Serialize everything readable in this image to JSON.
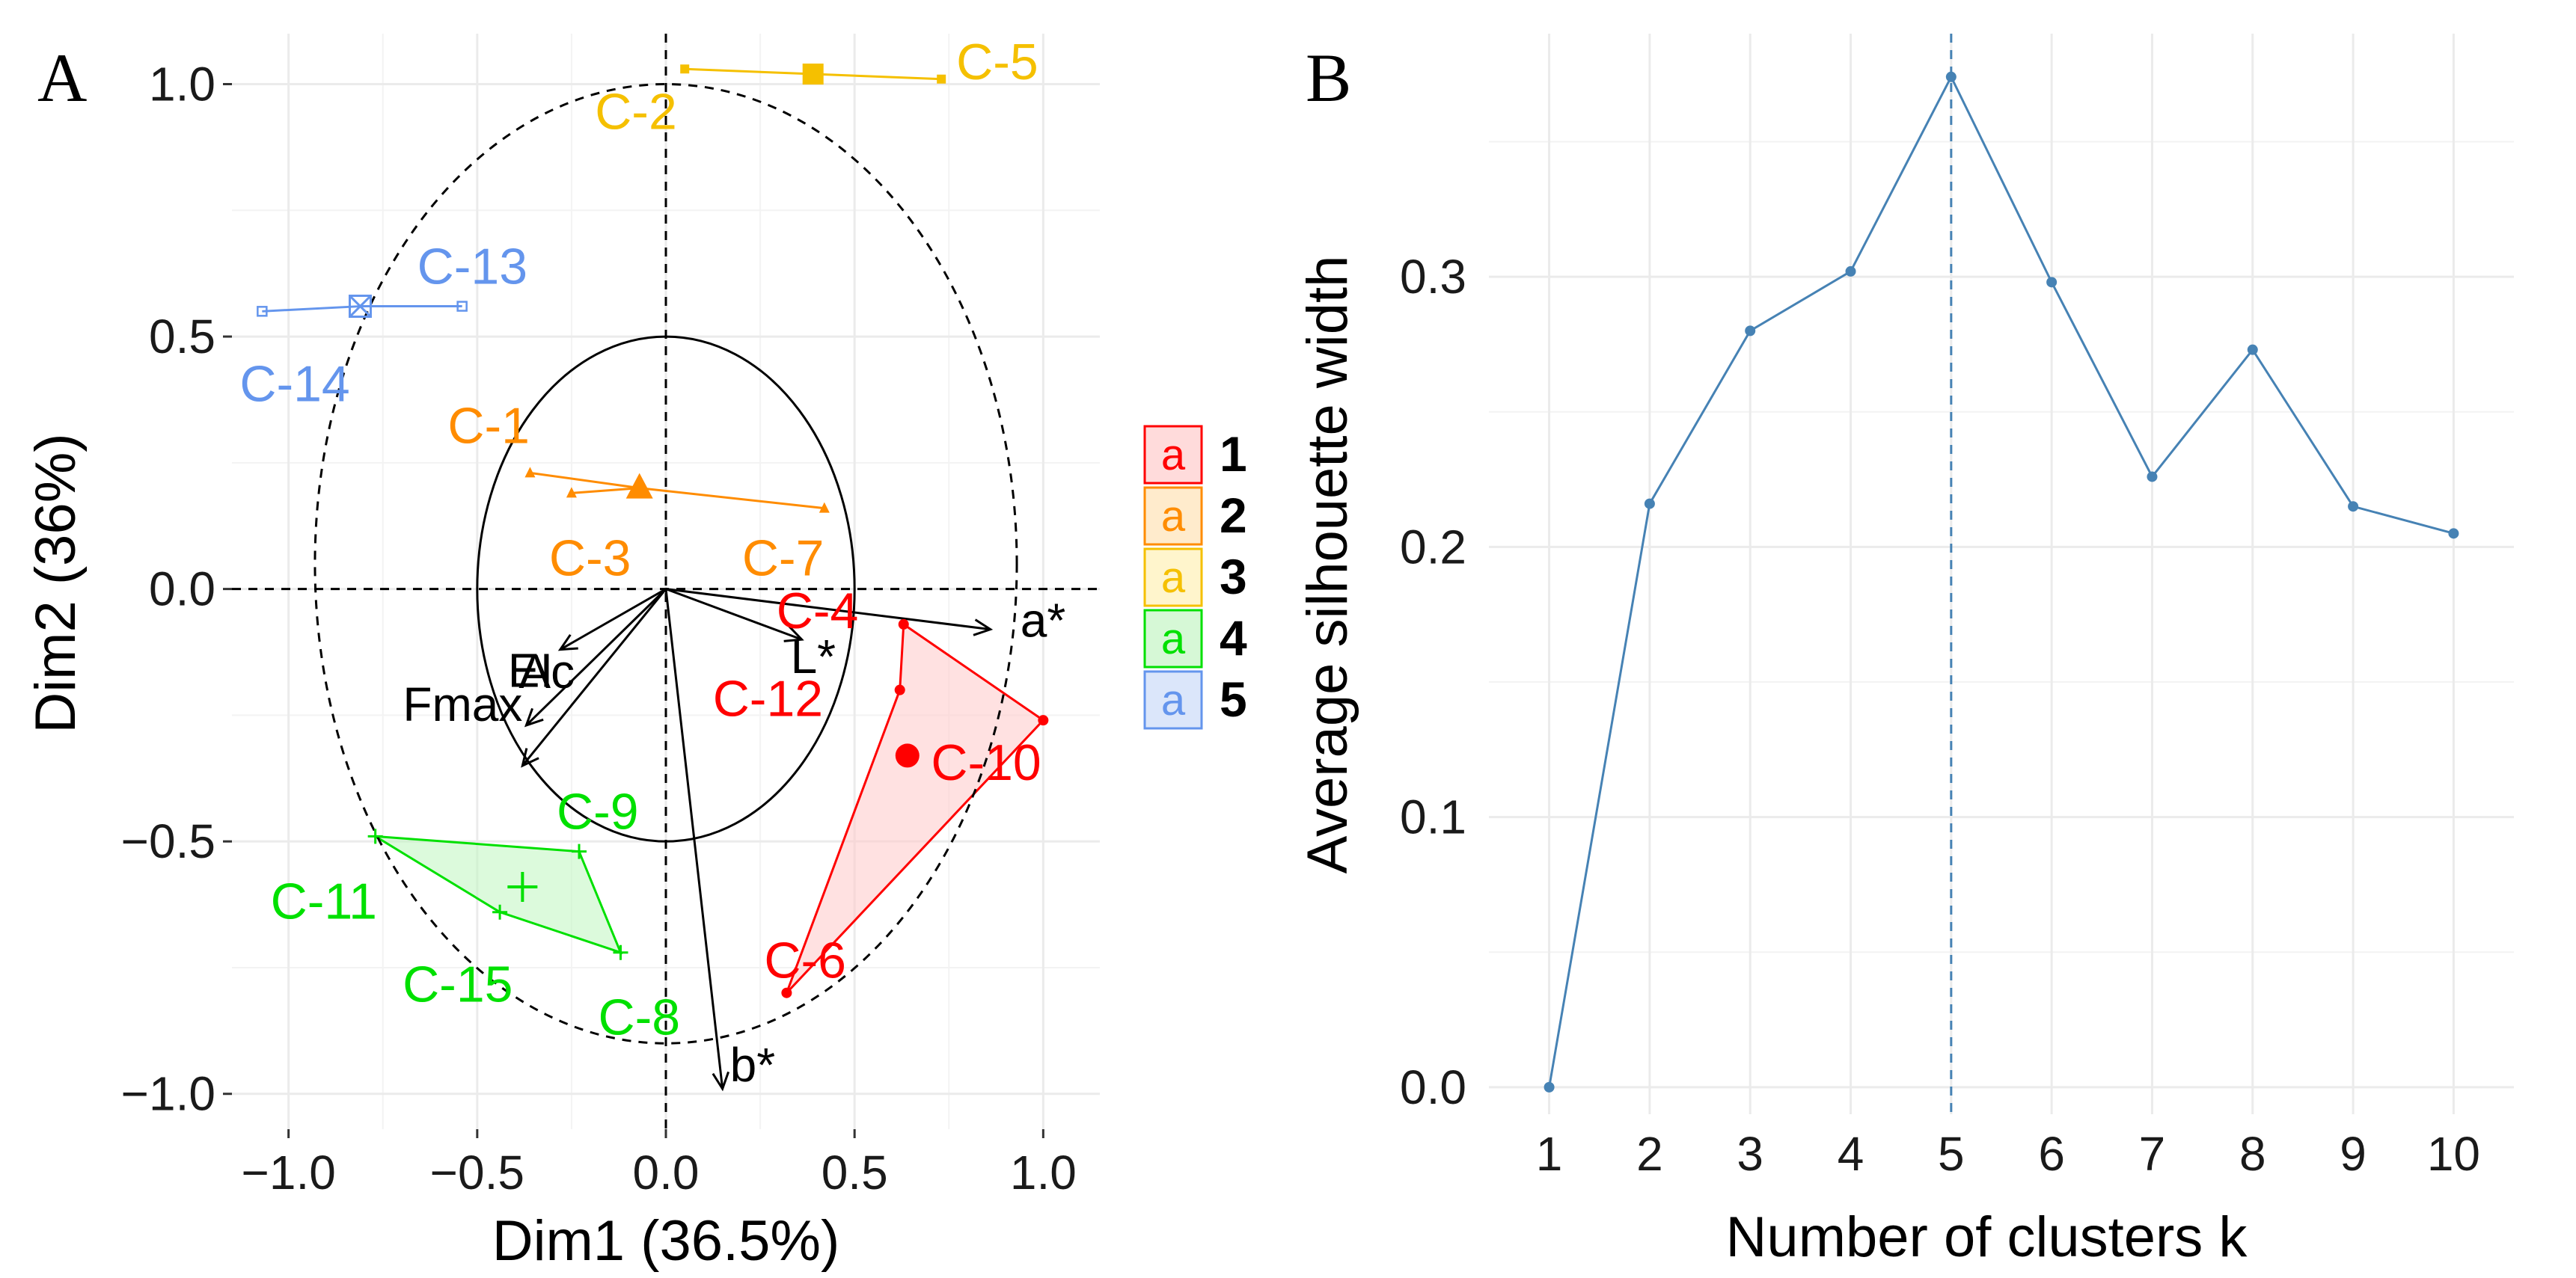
{
  "chart_data": [
    {
      "panel": "A",
      "type": "scatter",
      "xlabel": "Dim1 (36.5%)",
      "ylabel": "Dim2 (36%)",
      "xlim": [
        -1.15,
        1.15
      ],
      "ylim": [
        -1.07,
        1.1
      ],
      "xticks": [
        "−1.0",
        "−0.5",
        "0.0",
        "0.5",
        "1.0"
      ],
      "xtick_values": [
        -1.0,
        -0.5,
        0.0,
        0.5,
        1.0
      ],
      "yticks": [
        "−1.0",
        "−0.5",
        "0.0",
        "0.5",
        "1.0"
      ],
      "ytick_values": [
        -1.0,
        -0.5,
        0.0,
        0.5,
        1.0
      ],
      "grid": true,
      "legend_position": "right",
      "clusters": [
        {
          "name": "1",
          "color": "#FF0000",
          "fill": "#FFC8C8",
          "hull": true,
          "centroid": [
            0.64,
            -0.33
          ],
          "points": [
            {
              "label": "C-4",
              "x": 0.63,
              "y": -0.07
            },
            {
              "label": "C-10",
              "x": 1.0,
              "y": -0.26
            },
            {
              "label": "C-12",
              "x": 0.62,
              "y": -0.2
            },
            {
              "label": "C-6",
              "x": 0.32,
              "y": -0.8
            }
          ]
        },
        {
          "name": "2",
          "color": "#FF8C00",
          "fill": "#FFE0B0",
          "hull": false,
          "centroid": [
            -0.07,
            0.2
          ],
          "points": [
            {
              "label": "C-1",
              "x": -0.36,
              "y": 0.23
            },
            {
              "label": "C-3",
              "x": -0.25,
              "y": 0.19
            },
            {
              "label": "C-7",
              "x": 0.42,
              "y": 0.16
            }
          ]
        },
        {
          "name": "3",
          "color": "#F5C000",
          "fill": "#FFF0B0",
          "hull": false,
          "centroid": [
            0.39,
            1.02
          ],
          "points": [
            {
              "label": "C-2",
              "x": 0.05,
              "y": 1.03
            },
            {
              "label": "C-5",
              "x": 0.73,
              "y": 1.01
            }
          ]
        },
        {
          "name": "4",
          "color": "#00E000",
          "fill": "#C0F5C0",
          "hull": true,
          "centroid": [
            -0.38,
            -0.59
          ],
          "points": [
            {
              "label": "C-9",
              "x": -0.23,
              "y": -0.52
            },
            {
              "label": "C-11",
              "x": -0.77,
              "y": -0.49
            },
            {
              "label": "C-15",
              "x": -0.44,
              "y": -0.64
            },
            {
              "label": "C-8",
              "x": -0.12,
              "y": -0.72
            }
          ]
        },
        {
          "name": "5",
          "color": "#6495ED",
          "fill": "#C8D8F8",
          "hull": false,
          "centroid": [
            -0.81,
            0.56
          ],
          "points": [
            {
              "label": "C-13",
              "x": -0.54,
              "y": 0.56
            },
            {
              "label": "C-14",
              "x": -1.07,
              "y": 0.55
            }
          ]
        }
      ],
      "variables": [
        {
          "label": "L*",
          "x": 0.36,
          "y": -0.1
        },
        {
          "label": "a*",
          "x": 0.86,
          "y": -0.08
        },
        {
          "label": "EI",
          "x": -0.28,
          "y": -0.12
        },
        {
          "label": "Ac",
          "x": -0.37,
          "y": -0.27
        },
        {
          "label": "Fmax",
          "x": -0.38,
          "y": -0.35
        },
        {
          "label": "b*",
          "x": 0.15,
          "y": -0.99
        }
      ],
      "circles": [
        {
          "style": "dashed",
          "cx": 0.0,
          "cy": 0.05,
          "rx": 0.93,
          "ry": 0.95
        },
        {
          "style": "solid",
          "cx": 0.0,
          "cy": 0.0,
          "rx": 0.5,
          "ry": 0.5
        }
      ]
    },
    {
      "panel": "B",
      "type": "line",
      "xlabel": "Number of clusters k",
      "ylabel": "Average silhouette width",
      "x": [
        1,
        2,
        3,
        4,
        5,
        6,
        7,
        8,
        9,
        10
      ],
      "values": [
        0.0,
        0.216,
        0.28,
        0.302,
        0.374,
        0.298,
        0.226,
        0.273,
        0.215,
        0.205
      ],
      "xlim": [
        0.4,
        10.6
      ],
      "ylim": [
        -0.01,
        0.39
      ],
      "yticks": [
        "0.0",
        "0.1",
        "0.2",
        "0.3"
      ],
      "ytick_values": [
        0.0,
        0.1,
        0.2,
        0.3
      ],
      "xticks": [
        "1",
        "2",
        "3",
        "4",
        "5",
        "6",
        "7",
        "8",
        "9",
        "10"
      ],
      "optimal_k": 5,
      "line_color": "#4682B4",
      "grid": true
    }
  ],
  "panel_labels": [
    "A",
    "B"
  ]
}
